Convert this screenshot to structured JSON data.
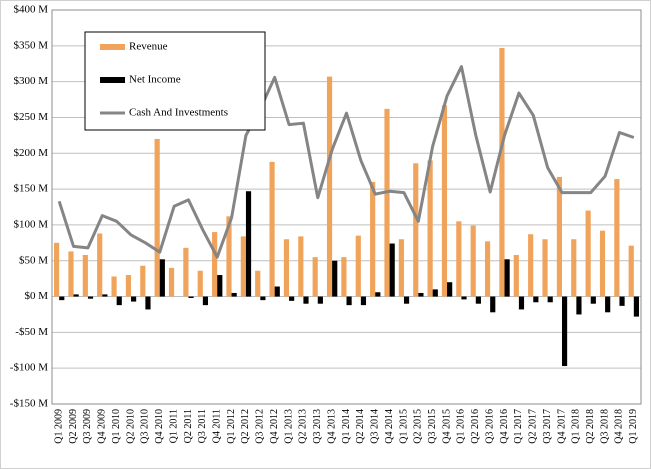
{
  "chart_data": {
    "type": "bar",
    "categories": [
      "Q1 2009",
      "Q2 2009",
      "Q3 2009",
      "Q4 2009",
      "Q1 2010",
      "Q2 2010",
      "Q3 2010",
      "Q4 2010",
      "Q1 2011",
      "Q2 2011",
      "Q3 2011",
      "Q4 2011",
      "Q1 2012",
      "Q2 2012",
      "Q3 2012",
      "Q4 2012",
      "Q1 2013",
      "Q2 2013",
      "Q3 2013",
      "Q4 2013",
      "Q1 2014",
      "Q2 2014",
      "Q3 2014",
      "Q4 2014",
      "Q1 2015",
      "Q2 2015",
      "Q3 2015",
      "Q4 2015",
      "Q1 2016",
      "Q2 2016",
      "Q3 2016",
      "Q4 2016",
      "Q1 2017",
      "Q2 2017",
      "Q3 2017",
      "Q4 2017",
      "Q1 2018",
      "Q2 2018",
      "Q3 2018",
      "Q4 2018",
      "Q1 2019"
    ],
    "series": [
      {
        "name": "Revenue",
        "type": "bar",
        "color": "#f0a35a",
        "values": [
          75,
          63,
          58,
          88,
          28,
          30,
          43,
          220,
          40,
          68,
          36,
          90,
          112,
          84,
          36,
          188,
          80,
          84,
          55,
          307,
          55,
          85,
          160,
          262,
          80,
          186,
          190,
          267,
          105,
          99,
          77,
          347,
          58,
          87,
          80,
          167,
          80,
          120,
          92,
          164,
          71
        ]
      },
      {
        "name": "Net Income",
        "type": "bar",
        "color": "#000000",
        "values": [
          -5,
          3,
          -3,
          3,
          -12,
          -7,
          -18,
          52,
          0,
          -2,
          -12,
          30,
          5,
          147,
          -5,
          14,
          -6,
          -10,
          -10,
          50,
          -12,
          -12,
          6,
          74,
          -10,
          5,
          10,
          20,
          -4,
          -10,
          -22,
          52,
          -18,
          -8,
          -8,
          -97,
          -25,
          -10,
          -22,
          -13,
          -28
        ]
      },
      {
        "name": "Cash And Investments",
        "type": "line",
        "color": "#858585",
        "values": [
          133,
          70,
          68,
          113,
          105,
          86,
          75,
          62,
          126,
          135,
          93,
          55,
          110,
          225,
          262,
          306,
          240,
          242,
          138,
          205,
          256,
          190,
          143,
          147,
          145,
          105,
          210,
          280,
          321,
          225,
          146,
          225,
          284,
          253,
          180,
          145,
          145,
          145,
          168,
          229,
          222
        ]
      }
    ],
    "ylim": [
      -150,
      400
    ],
    "yticks": [
      {
        "value": -150,
        "label": "-$150 M"
      },
      {
        "value": -100,
        "label": "-$100 M"
      },
      {
        "value": -50,
        "label": "-$50 M"
      },
      {
        "value": 0,
        "label": "$0 M"
      },
      {
        "value": 50,
        "label": "$50 M"
      },
      {
        "value": 100,
        "label": "$100 M"
      },
      {
        "value": 150,
        "label": "$150 M"
      },
      {
        "value": 200,
        "label": "$200 M"
      },
      {
        "value": 250,
        "label": "$250 M"
      },
      {
        "value": 300,
        "label": "$300 M"
      },
      {
        "value": 350,
        "label": "$350 M"
      },
      {
        "value": 400,
        "label": "$400 M"
      }
    ],
    "grid": true,
    "legend": "upper left"
  }
}
